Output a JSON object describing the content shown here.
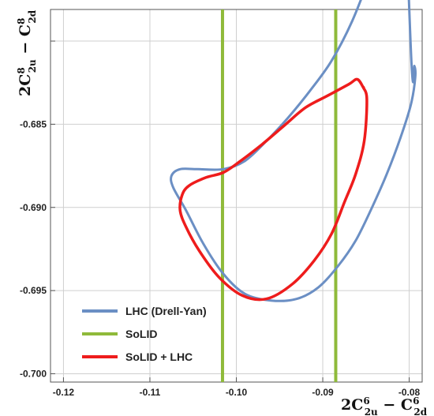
{
  "chart_data": {
    "type": "line",
    "xlabel": {
      "main": "2C",
      "sup1": "6",
      "sub1": "2u",
      "mid": " − C",
      "sup2": "6",
      "sub2": "2d"
    },
    "ylabel": {
      "main": "2C",
      "sup1": "8",
      "sub1": "2u",
      "mid": " − C",
      "sup2": "8",
      "sub2": "2d"
    },
    "xlim": [
      -0.1215,
      -0.0785
    ],
    "ylim": [
      -0.7005,
      -0.6781
    ],
    "x_ticks": [
      -0.12,
      -0.11,
      -0.1,
      -0.09,
      -0.08
    ],
    "x_tick_labels": [
      "-0.12",
      "-0.11",
      "-0.10",
      "-0.09",
      "-0.08"
    ],
    "y_ticks": [
      -0.7,
      -0.695,
      -0.69,
      -0.685,
      -0.68
    ],
    "y_tick_labels": [
      "-0.700",
      "-0.695",
      "-0.690",
      "-0.685",
      ""
    ],
    "grid": true,
    "legend_position": "bottom-left",
    "series": [
      {
        "name": "LHC (Drell-Yan)",
        "color": "#6b8fc4",
        "kind": "closed-contour",
        "points": [
          [
            -0.0794,
            -0.6815
          ],
          [
            -0.0793,
            -0.6822
          ],
          [
            -0.0798,
            -0.6838
          ],
          [
            -0.081,
            -0.6858
          ],
          [
            -0.0826,
            -0.688
          ],
          [
            -0.0843,
            -0.69
          ],
          [
            -0.0862,
            -0.692
          ],
          [
            -0.0882,
            -0.6935
          ],
          [
            -0.0905,
            -0.6948
          ],
          [
            -0.093,
            -0.6955
          ],
          [
            -0.096,
            -0.6956
          ],
          [
            -0.099,
            -0.6952
          ],
          [
            -0.1015,
            -0.694
          ],
          [
            -0.1038,
            -0.6922
          ],
          [
            -0.1058,
            -0.6902
          ],
          [
            -0.1073,
            -0.6888
          ],
          [
            -0.1075,
            -0.6881
          ],
          [
            -0.1065,
            -0.6877
          ],
          [
            -0.1045,
            -0.6877
          ],
          [
            -0.1015,
            -0.6877
          ],
          [
            -0.099,
            -0.6872
          ],
          [
            -0.0965,
            -0.686
          ],
          [
            -0.094,
            -0.6846
          ],
          [
            -0.0915,
            -0.683
          ],
          [
            -0.089,
            -0.6812
          ],
          [
            -0.0866,
            -0.6788
          ],
          [
            -0.0845,
            -0.676
          ],
          [
            -0.0825,
            -0.673
          ],
          [
            -0.0808,
            -0.6702
          ],
          [
            -0.0797,
            -0.6817
          ]
        ]
      },
      {
        "name": "SoLID",
        "color": "#8fba3a",
        "kind": "vertical-lines",
        "x": [
          -0.1016,
          -0.0885
        ]
      },
      {
        "name": "SoLID + LHC",
        "color": "#ee1c1c",
        "kind": "closed-contour",
        "points": [
          [
            -0.0853,
            -0.6828
          ],
          [
            -0.0849,
            -0.6835
          ],
          [
            -0.0852,
            -0.686
          ],
          [
            -0.0862,
            -0.688
          ],
          [
            -0.0875,
            -0.6897
          ],
          [
            -0.089,
            -0.6916
          ],
          [
            -0.091,
            -0.6932
          ],
          [
            -0.0935,
            -0.6946
          ],
          [
            -0.0965,
            -0.6955
          ],
          [
            -0.0993,
            -0.6953
          ],
          [
            -0.102,
            -0.6942
          ],
          [
            -0.1043,
            -0.6926
          ],
          [
            -0.1058,
            -0.6912
          ],
          [
            -0.1065,
            -0.6902
          ],
          [
            -0.1063,
            -0.6893
          ],
          [
            -0.1055,
            -0.6887
          ],
          [
            -0.1035,
            -0.6882
          ],
          [
            -0.1015,
            -0.6879
          ],
          [
            -0.0995,
            -0.6872
          ],
          [
            -0.097,
            -0.6862
          ],
          [
            -0.0945,
            -0.6851
          ],
          [
            -0.092,
            -0.684
          ],
          [
            -0.0895,
            -0.6833
          ],
          [
            -0.087,
            -0.6826
          ],
          [
            -0.086,
            -0.6823
          ],
          [
            -0.0853,
            -0.6828
          ]
        ]
      }
    ]
  }
}
